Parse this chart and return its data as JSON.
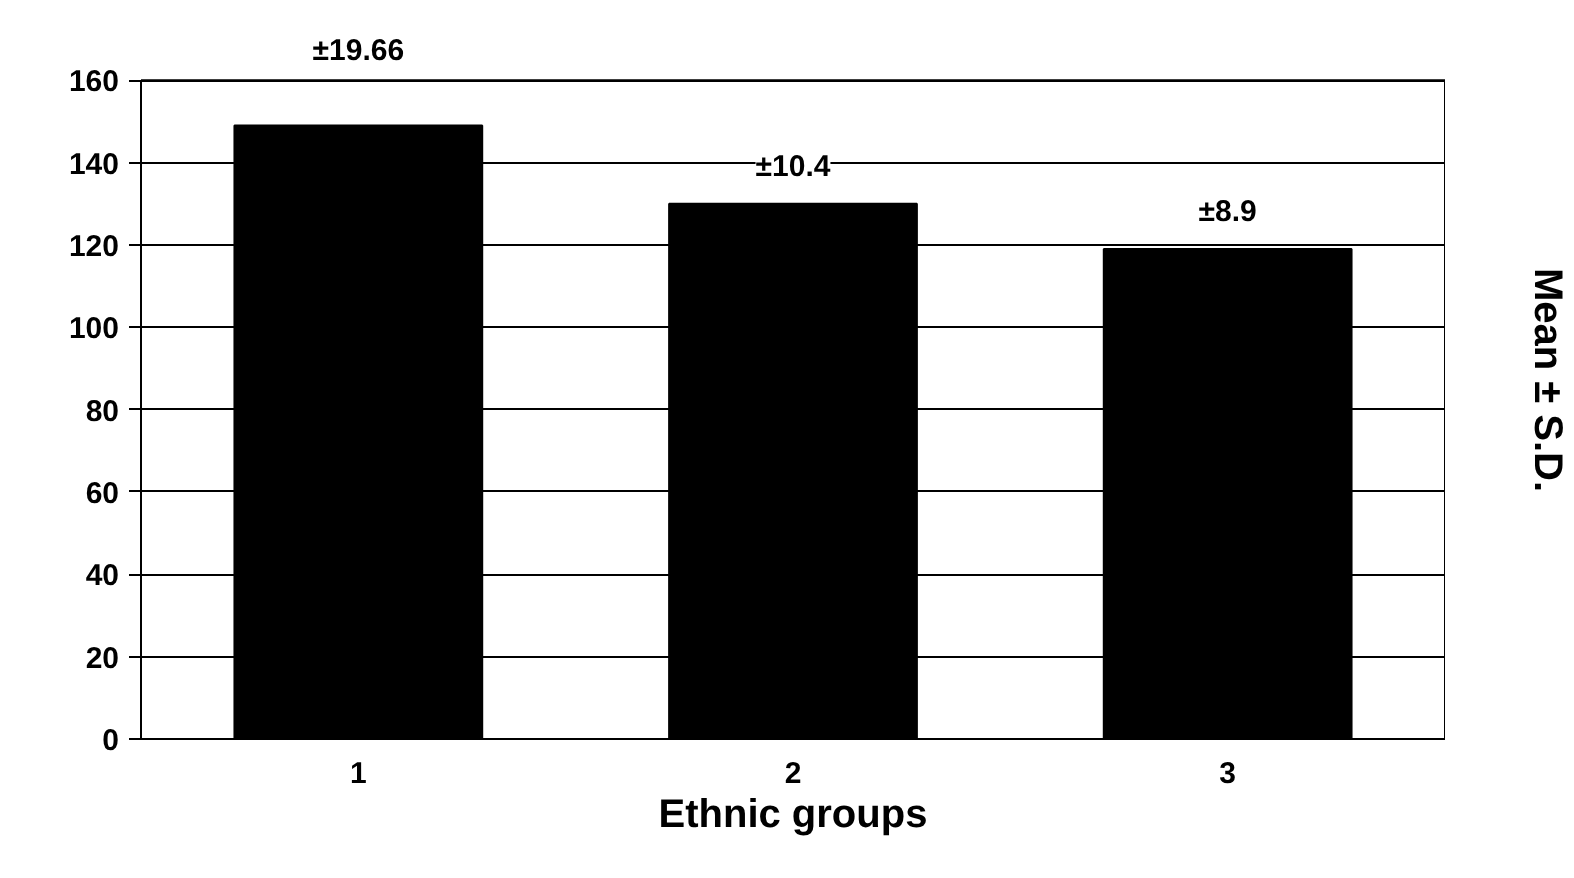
{
  "chart_data": {
    "type": "bar",
    "xlabel": "Ethnic groups",
    "ylabel": "Mean ± S.D.",
    "categories": [
      "1",
      "2",
      "3"
    ],
    "values": [
      149,
      130,
      119
    ],
    "color": "#000000",
    "ylim": [
      0,
      160
    ],
    "yticks": [
      0,
      20,
      40,
      60,
      80,
      100,
      120,
      140,
      160
    ],
    "grid": "y",
    "annotations": [
      "±19.66",
      "±10.4",
      "±8.9"
    ]
  }
}
